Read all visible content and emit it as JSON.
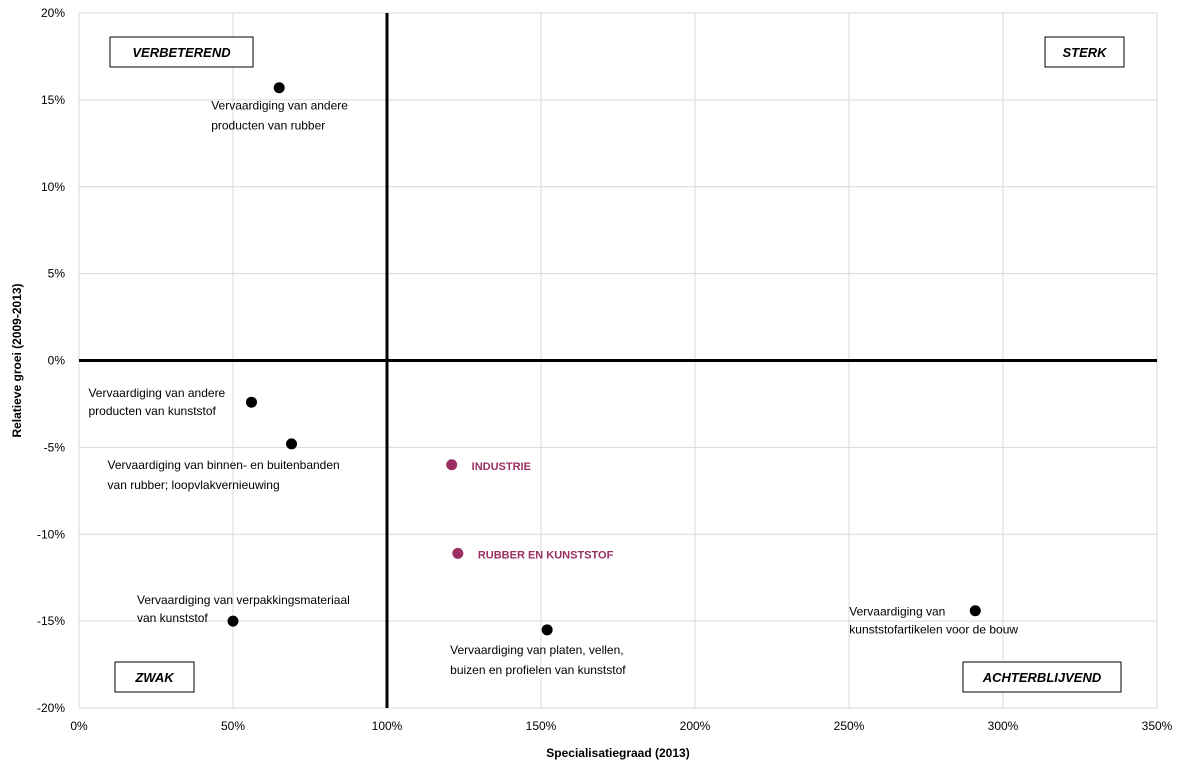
{
  "chart_data": {
    "type": "scatter",
    "xlabel": "Specialisatiegraad  (2013)",
    "ylabel": "Relatieve groei (2009-2013)",
    "xlim": [
      0,
      350
    ],
    "ylim": [
      -20,
      20
    ],
    "x_ticks": [
      0,
      50,
      100,
      150,
      200,
      250,
      300,
      350
    ],
    "y_ticks": [
      -20,
      -15,
      -10,
      -5,
      0,
      5,
      10,
      15,
      20
    ],
    "x_tick_labels": [
      "0%",
      "50%",
      "100%",
      "150%",
      "200%",
      "250%",
      "300%",
      "350%"
    ],
    "y_tick_labels": [
      "-20%",
      "-15%",
      "-10%",
      "-5%",
      "0%",
      "5%",
      "10%",
      "15%",
      "20%"
    ],
    "grid": true,
    "quadrant_lines": {
      "x": 100,
      "y": 0
    },
    "quadrant_labels": [
      {
        "text": "VERBETEREND",
        "position": "top-left"
      },
      {
        "text": "STERK",
        "position": "top-right"
      },
      {
        "text": "ZWAK",
        "position": "bottom-left"
      },
      {
        "text": "ACHTERBLIJVEND",
        "position": "bottom-right"
      }
    ],
    "points": [
      {
        "x": 65,
        "y": 15.7,
        "label": [
          "Vervaardiging van andere",
          "producten van rubber"
        ],
        "highlight": false
      },
      {
        "x": 56,
        "y": -2.4,
        "label": [
          "Vervaardiging van andere",
          "producten van kunststof"
        ],
        "highlight": false
      },
      {
        "x": 69,
        "y": -4.8,
        "label": [
          "Vervaardiging van binnen- en buitenbanden",
          "van rubber; loopvlakvernieuwing"
        ],
        "highlight": false
      },
      {
        "x": 121,
        "y": -6.0,
        "label": [
          "INDUSTRIE"
        ],
        "highlight": true
      },
      {
        "x": 123,
        "y": -11.1,
        "label": [
          "RUBBER EN KUNSTSTOF"
        ],
        "highlight": true
      },
      {
        "x": 50,
        "y": -15.0,
        "label": [
          "Vervaardiging van verpakkingsmateriaal",
          "van kunststof"
        ],
        "highlight": false
      },
      {
        "x": 152,
        "y": -15.5,
        "label": [
          "Vervaardiging van platen, vellen,",
          "buizen en profielen van kunststof"
        ],
        "highlight": false
      },
      {
        "x": 291,
        "y": -14.4,
        "label": [
          "Vervaardiging van",
          "kunststofartikelen voor de bouw"
        ],
        "highlight": false
      }
    ],
    "colors": {
      "point": "#000000",
      "highlight": "#9b2f64",
      "grid": "#d9d9d9",
      "axis": "#000000"
    }
  }
}
